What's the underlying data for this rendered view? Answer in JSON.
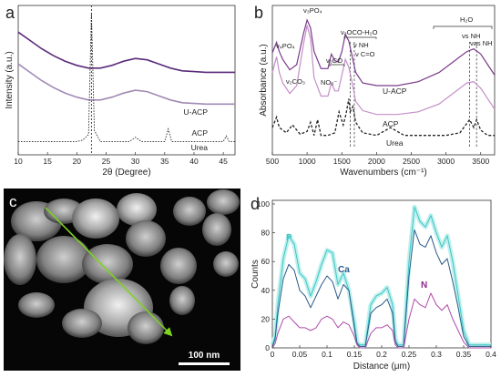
{
  "chart_data": [
    {
      "panel": "a",
      "type": "line",
      "xlabel": "2θ (Degree)",
      "ylabel": "Intensity (a.u.)",
      "xlim": [
        10,
        47
      ],
      "xticks": [
        10,
        15,
        20,
        25,
        30,
        35,
        40,
        45
      ],
      "reference_line_x": 22.5,
      "series": [
        {
          "name": "U-ACP",
          "color": "#5a2a7a",
          "x": [
            10,
            12,
            14,
            16,
            18,
            20,
            22,
            24,
            26,
            28,
            30,
            32,
            34,
            36,
            38,
            40,
            42,
            44,
            47
          ],
          "y": [
            0.86,
            0.8,
            0.74,
            0.69,
            0.65,
            0.62,
            0.6,
            0.6,
            0.62,
            0.65,
            0.67,
            0.66,
            0.63,
            0.6,
            0.58,
            0.575,
            0.57,
            0.57,
            0.57
          ]
        },
        {
          "name": "ACP",
          "color": "#a08ab4",
          "x": [
            10,
            12,
            14,
            16,
            18,
            20,
            22,
            24,
            26,
            28,
            30,
            32,
            34,
            36,
            38,
            40,
            42,
            44,
            47
          ],
          "y": [
            0.63,
            0.57,
            0.51,
            0.46,
            0.42,
            0.39,
            0.37,
            0.37,
            0.39,
            0.42,
            0.44,
            0.43,
            0.4,
            0.37,
            0.35,
            0.345,
            0.34,
            0.34,
            0.34
          ]
        },
        {
          "name": "Urea",
          "color": "#222222",
          "x": [
            10,
            15,
            20,
            21,
            22,
            22.5,
            23,
            24,
            29,
            30,
            31,
            35,
            35.6,
            36.2,
            40,
            45,
            45.5,
            46,
            47
          ],
          "y": [
            0.07,
            0.07,
            0.07,
            0.08,
            0.12,
            1.0,
            0.15,
            0.07,
            0.07,
            0.1,
            0.07,
            0.07,
            0.16,
            0.07,
            0.07,
            0.07,
            0.11,
            0.07,
            0.07
          ]
        }
      ]
    },
    {
      "panel": "b",
      "type": "line",
      "xlabel": "Wavenumbers (cm⁻¹)",
      "ylabel": "Absorbance (a.u.)",
      "xlim": [
        500,
        3700
      ],
      "xticks": [
        500,
        1000,
        1500,
        2000,
        2500,
        3000,
        3500
      ],
      "reference_lines_x": [
        1620,
        1680,
        3340,
        3440
      ],
      "annotations": [
        "ν₄PO₄",
        "ν₂CO₃",
        "ν₃PO₄",
        "NO₃⁻",
        "ν₃CO",
        "ν₂OCO-H₂O",
        "ν NH",
        "ν C=O",
        "H₂O",
        "νs NH",
        "νas NH"
      ],
      "series": [
        {
          "name": "U-ACP",
          "color": "#7a3a8a",
          "x": [
            500,
            560,
            600,
            650,
            750,
            850,
            950,
            1000,
            1050,
            1100,
            1200,
            1300,
            1350,
            1400,
            1450,
            1500,
            1550,
            1600,
            1650,
            1700,
            1800,
            2000,
            2300,
            2600,
            2900,
            3100,
            3300,
            3400,
            3500,
            3600,
            3700
          ],
          "y": [
            0.75,
            0.83,
            0.76,
            0.7,
            0.62,
            0.66,
            0.9,
            1.0,
            0.94,
            0.76,
            0.63,
            0.63,
            0.74,
            0.69,
            0.68,
            0.76,
            0.89,
            0.84,
            0.72,
            0.6,
            0.52,
            0.5,
            0.5,
            0.53,
            0.6,
            0.68,
            0.76,
            0.78,
            0.74,
            0.66,
            0.58
          ]
        },
        {
          "name": "ACP",
          "color": "#c48ec8",
          "x": [
            500,
            560,
            600,
            650,
            750,
            850,
            950,
            1000,
            1050,
            1100,
            1200,
            1300,
            1350,
            1400,
            1450,
            1500,
            1550,
            1600,
            1650,
            1700,
            1800,
            2000,
            2300,
            2600,
            2900,
            3100,
            3300,
            3400,
            3500,
            3600,
            3700
          ],
          "y": [
            0.6,
            0.72,
            0.6,
            0.52,
            0.44,
            0.5,
            0.82,
            0.96,
            0.86,
            0.56,
            0.42,
            0.42,
            0.52,
            0.46,
            0.46,
            0.58,
            0.7,
            0.64,
            0.52,
            0.38,
            0.31,
            0.28,
            0.28,
            0.3,
            0.36,
            0.44,
            0.52,
            0.53,
            0.48,
            0.4,
            0.32
          ]
        },
        {
          "name": "Urea",
          "color": "#222222",
          "dashed": true,
          "x": [
            500,
            560,
            600,
            700,
            790,
            900,
            1000,
            1050,
            1100,
            1150,
            1200,
            1300,
            1400,
            1460,
            1520,
            1560,
            1600,
            1620,
            1660,
            1700,
            1800,
            2000,
            2200,
            2400,
            2700,
            3000,
            3200,
            3340,
            3400,
            3440,
            3500,
            3600,
            3700
          ],
          "y": [
            0.18,
            0.26,
            0.18,
            0.14,
            0.2,
            0.13,
            0.15,
            0.22,
            0.12,
            0.24,
            0.12,
            0.12,
            0.14,
            0.3,
            0.2,
            0.28,
            0.4,
            0.3,
            0.34,
            0.22,
            0.14,
            0.12,
            0.18,
            0.12,
            0.12,
            0.12,
            0.14,
            0.24,
            0.18,
            0.24,
            0.16,
            0.12,
            0.12
          ]
        }
      ]
    },
    {
      "panel": "c",
      "type": "image",
      "scale_bar_label": "100 nm"
    },
    {
      "panel": "d",
      "type": "line",
      "xlabel": "Distance (μm)",
      "ylabel": "Counts",
      "xlim": [
        0,
        0.4
      ],
      "ylim": [
        0,
        100
      ],
      "xticks": [
        0,
        0.05,
        0.1,
        0.15,
        0.2,
        0.25,
        0.3,
        0.35,
        0.4
      ],
      "yticks": [
        0,
        20,
        40,
        60,
        80,
        100
      ],
      "series": [
        {
          "name": "P",
          "color": "#3fc6c4",
          "x": [
            0,
            0.005,
            0.01,
            0.02,
            0.03,
            0.04,
            0.05,
            0.06,
            0.07,
            0.08,
            0.09,
            0.1,
            0.11,
            0.12,
            0.13,
            0.14,
            0.15,
            0.155,
            0.16,
            0.17,
            0.18,
            0.19,
            0.2,
            0.21,
            0.22,
            0.225,
            0.23,
            0.24,
            0.25,
            0.26,
            0.27,
            0.28,
            0.29,
            0.3,
            0.31,
            0.32,
            0.33,
            0.34,
            0.35,
            0.36,
            0.4
          ],
          "y": [
            2,
            8,
            30,
            62,
            78,
            72,
            52,
            48,
            36,
            46,
            58,
            68,
            66,
            44,
            52,
            40,
            18,
            4,
            2,
            2,
            30,
            36,
            38,
            42,
            30,
            6,
            2,
            2,
            60,
            98,
            88,
            84,
            92,
            80,
            70,
            78,
            60,
            36,
            12,
            2,
            2
          ]
        },
        {
          "name": "Ca",
          "color": "#2a5a8a",
          "x": [
            0,
            0.005,
            0.01,
            0.02,
            0.03,
            0.04,
            0.05,
            0.06,
            0.07,
            0.08,
            0.09,
            0.1,
            0.11,
            0.12,
            0.13,
            0.14,
            0.15,
            0.155,
            0.16,
            0.17,
            0.18,
            0.19,
            0.2,
            0.21,
            0.22,
            0.225,
            0.23,
            0.24,
            0.25,
            0.26,
            0.27,
            0.28,
            0.29,
            0.3,
            0.31,
            0.32,
            0.33,
            0.34,
            0.35,
            0.36,
            0.4
          ],
          "y": [
            1,
            6,
            24,
            48,
            58,
            54,
            40,
            36,
            28,
            36,
            44,
            50,
            46,
            34,
            44,
            40,
            14,
            3,
            1,
            1,
            24,
            28,
            30,
            34,
            24,
            4,
            1,
            1,
            50,
            82,
            72,
            70,
            78,
            66,
            58,
            62,
            46,
            28,
            8,
            1,
            1
          ]
        },
        {
          "name": "N",
          "color": "#b04aa8",
          "x": [
            0,
            0.005,
            0.01,
            0.02,
            0.03,
            0.04,
            0.05,
            0.06,
            0.07,
            0.08,
            0.09,
            0.1,
            0.11,
            0.12,
            0.13,
            0.14,
            0.15,
            0.155,
            0.16,
            0.17,
            0.18,
            0.19,
            0.2,
            0.21,
            0.22,
            0.225,
            0.23,
            0.24,
            0.25,
            0.26,
            0.27,
            0.28,
            0.29,
            0.3,
            0.31,
            0.32,
            0.33,
            0.34,
            0.35,
            0.36,
            0.4
          ],
          "y": [
            0,
            3,
            10,
            20,
            22,
            18,
            14,
            14,
            12,
            14,
            20,
            22,
            20,
            14,
            18,
            16,
            8,
            2,
            0,
            0,
            10,
            14,
            14,
            16,
            12,
            2,
            0,
            0,
            20,
            34,
            30,
            28,
            38,
            30,
            26,
            30,
            20,
            12,
            4,
            0,
            0
          ]
        }
      ]
    }
  ]
}
